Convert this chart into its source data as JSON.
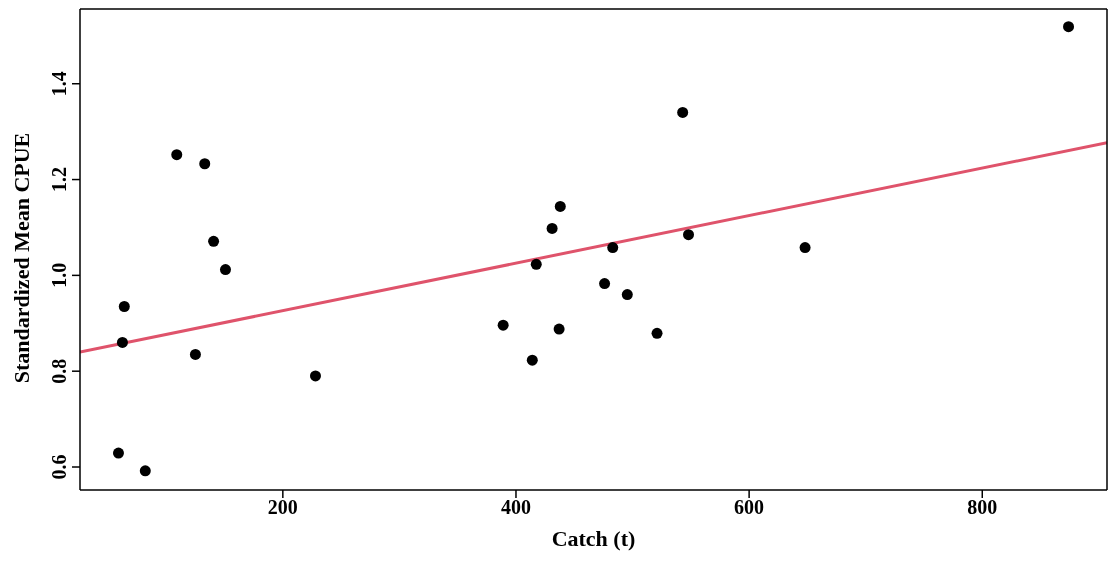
{
  "chart_data": {
    "type": "scatter",
    "xlabel": "Catch (t)",
    "ylabel": "Standardized Mean CPUE",
    "xlim": [
      26,
      907
    ],
    "ylim": [
      0.552,
      1.556
    ],
    "xticks": [
      200,
      400,
      600,
      800
    ],
    "yticks": [
      0.6,
      0.8,
      {
        "value": 1.0,
        "label": "1.0"
      },
      1.2,
      1.4
    ],
    "series": [
      {
        "marker": "circle",
        "color": "#000000",
        "x": [
          59,
          82,
          62.4,
          64,
          109,
          133,
          125,
          140.6,
          150.8,
          228,
          389,
          414,
          417.4,
          431,
          438,
          437,
          476,
          483,
          495.5,
          521,
          543,
          548,
          648,
          874
        ],
        "values": [
          0.629,
          0.592,
          0.86,
          0.935,
          1.252,
          1.233,
          0.835,
          1.071,
          1.012,
          0.79,
          0.896,
          0.823,
          1.023,
          1.098,
          1.144,
          0.888,
          0.983,
          1.058,
          0.96,
          0.879,
          1.34,
          1.085,
          1.058,
          1.519
        ]
      },
      {
        "type": "line",
        "color": "#df536b",
        "line_style": "solid",
        "x": [
          26,
          907
        ],
        "values": [
          0.84,
          1.277
        ]
      }
    ]
  }
}
